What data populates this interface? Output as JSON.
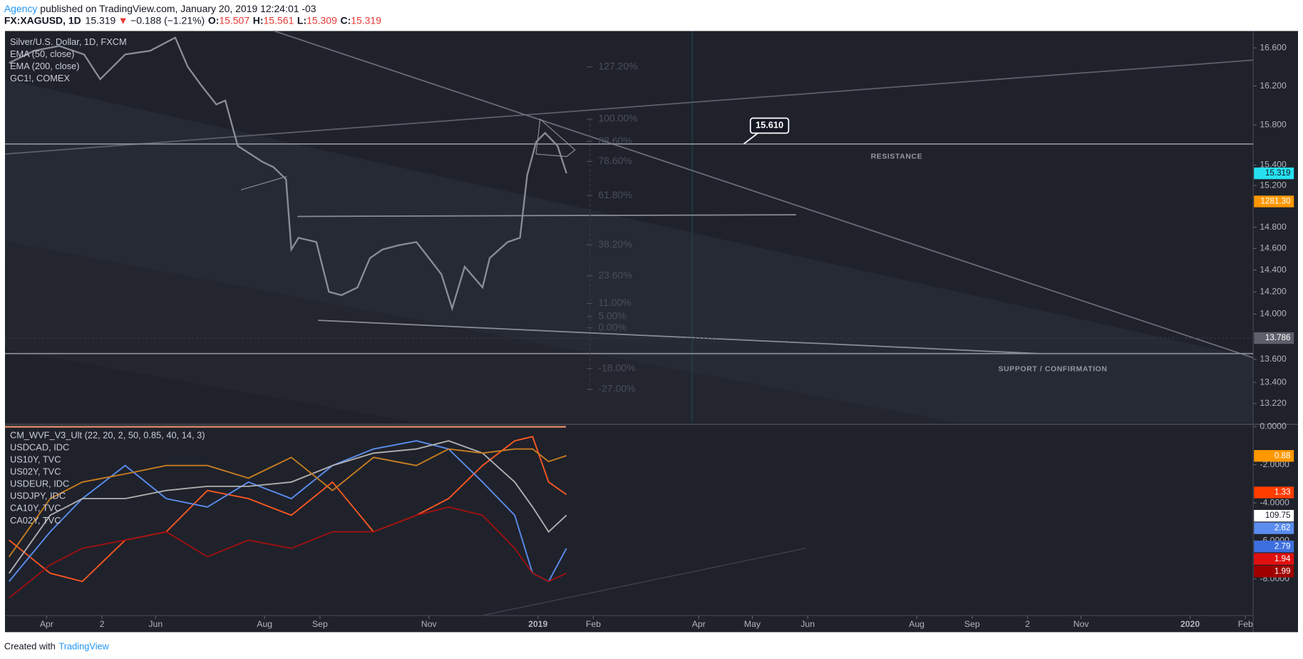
{
  "chart_data": {
    "type": "line",
    "header": {
      "author": "Agency",
      "published": " published on TradingView.com, January 20, 2019 12:24:01 -03",
      "symbol": "FX:XAGUSD, 1D",
      "last": "15.319",
      "arrow": "▼",
      "change": "−0.188 (−1.21%)",
      "ohlc": [
        {
          "key": "O:",
          "value": "15.507"
        },
        {
          "key": "H:",
          "value": "15.561"
        },
        {
          "key": "L:",
          "value": "15.309"
        },
        {
          "key": "C:",
          "value": "15.319"
        }
      ]
    },
    "legend": [
      "Silver/U.S. Dollar, 1D, FXCM",
      "EMA (50, close)",
      "EMA (200, close)",
      "GC1!, COMEX"
    ],
    "lower_legend": [
      "CM_WVF_V3_Ult (22, 20, 2, 50, 0.85, 40, 14, 3)",
      "USDCAD, IDC",
      "US10Y, TVC",
      "US02Y, TVC",
      "USDEUR, IDC",
      "USDJPY, IDC",
      "CA10Y, TVC",
      "CA02Y, TVC"
    ],
    "log_scale": true,
    "xlim": [
      66.7,
      765.3
    ],
    "xticks": [
      {
        "value": 90,
        "label": "Apr"
      },
      {
        "value": 121,
        "label": "2"
      },
      {
        "value": 151,
        "label": "Jun"
      },
      {
        "value": 212,
        "label": "Aug"
      },
      {
        "value": 243,
        "label": "Sep"
      },
      {
        "value": 304,
        "label": "Nov"
      },
      {
        "value": 365,
        "label": "2019"
      },
      {
        "value": 396,
        "label": "Feb"
      },
      {
        "value": 455,
        "label": "Apr"
      },
      {
        "value": 485,
        "label": "May"
      },
      {
        "value": 516,
        "label": "Jun"
      },
      {
        "value": 577,
        "label": "Aug"
      },
      {
        "value": 608,
        "label": "Sep"
      },
      {
        "value": 639,
        "label": "2"
      },
      {
        "value": 669,
        "label": "Nov"
      },
      {
        "value": 730,
        "label": "2020"
      },
      {
        "value": 761,
        "label": "Feb"
      }
    ],
    "ylim": [
      13.06,
      16.78
    ],
    "yticks": [
      {
        "value": 16.6,
        "label": "16.600"
      },
      {
        "value": 16.2,
        "label": "16.200"
      },
      {
        "value": 15.8,
        "label": "15.800"
      },
      {
        "value": 15.4,
        "label": "15.400"
      },
      {
        "value": 15.2,
        "label": "15.200"
      },
      {
        "value": 14.8,
        "label": "14.800"
      },
      {
        "value": 14.6,
        "label": "14.600"
      },
      {
        "value": 14.4,
        "label": "14.400"
      },
      {
        "value": 14.2,
        "label": "14.200"
      },
      {
        "value": 14,
        "label": "14.000"
      },
      {
        "value": 13.6,
        "label": "13.600"
      },
      {
        "value": 13.4,
        "label": "13.400"
      },
      {
        "value": 13.22,
        "label": "13.220"
      }
    ],
    "series": [
      {
        "color": "#8a8d96",
        "x": [
          69,
          83,
          97,
          111,
          120,
          134,
          148,
          162,
          169,
          176,
          185,
          190,
          197,
          204,
          211,
          217,
          224,
          227,
          231,
          241,
          248,
          255,
          264,
          271,
          278,
          287,
          297,
          304,
          311,
          317,
          324,
          334,
          338,
          348,
          355,
          359,
          364,
          369,
          376,
          381
        ],
        "values": [
          16.44,
          16.57,
          16.62,
          16.53,
          16.27,
          16.53,
          16.57,
          16.71,
          16.4,
          16.22,
          16.01,
          16.05,
          15.59,
          15.51,
          15.43,
          15.38,
          15.26,
          14.59,
          14.7,
          14.66,
          14.2,
          14.17,
          14.24,
          14.51,
          14.59,
          14.63,
          14.66,
          14.51,
          14.36,
          14.05,
          14.43,
          14.24,
          14.51,
          14.66,
          14.7,
          15.3,
          15.63,
          15.72,
          15.59,
          15.32
        ]
      }
    ],
    "price_tags": [
      {
        "value": 15.319,
        "label": "15.319",
        "color": "#26e0f0"
      },
      {
        "value": 13.786,
        "label": "13.786",
        "color": "#5d606b"
      }
    ],
    "other_tags": [
      {
        "label": "1281.30",
        "color": "#ff9800"
      }
    ],
    "fib": {
      "low": 13.877,
      "high": 15.86,
      "levels": [
        {
          "value": 127.2,
          "label": "127.20%"
        },
        {
          "value": 100,
          "label": "100.00%"
        },
        {
          "value": 88.6,
          "label": "88.60%"
        },
        {
          "value": 78.6,
          "label": "78.60%"
        },
        {
          "value": 61.8,
          "label": "61.80%"
        },
        {
          "value": 38.2,
          "label": "38.20%"
        },
        {
          "value": 23.6,
          "label": "23.60%"
        },
        {
          "value": 11,
          "label": "11.00%"
        },
        {
          "value": 5,
          "label": "5.00%"
        },
        {
          "value": 0,
          "label": "0.00%"
        },
        {
          "value": -18,
          "label": "-18.00%"
        },
        {
          "value": -27,
          "label": "-27.00%"
        }
      ]
    },
    "annotations": {
      "callout": {
        "value": 15.61,
        "label": "15.610"
      },
      "resistance": "RESISTANCE",
      "support": "SUPPORT / CONFIRMATION"
    },
    "lower": {
      "ylim": [
        -9.92,
        0.04
      ],
      "yticks": [
        {
          "value": 0,
          "label": "0.0000"
        },
        {
          "value": -2,
          "label": "-2.0000"
        },
        {
          "value": -4,
          "label": "-4.0000"
        },
        {
          "value": -6,
          "label": "-6.0000"
        },
        {
          "value": -8,
          "label": "-8.0000"
        }
      ],
      "x": [
        69,
        92,
        110,
        134,
        157,
        180,
        203,
        227,
        250,
        273,
        297,
        315,
        334,
        352,
        362,
        371,
        381
      ],
      "series": [
        {
          "color": "#ff5722",
          "values": [
            -5.96,
            -7.7,
            -8.13,
            -5.96,
            -5.52,
            -3.35,
            -3.78,
            -4.65,
            -2.91,
            -5.52,
            -4.65,
            -3.78,
            -2.04,
            -0.74,
            -0.52,
            -2.91,
            -3.57
          ]
        },
        {
          "color": "#5b8def",
          "values": [
            -8.13,
            -5.52,
            -3.78,
            -2.04,
            -3.78,
            -4.22,
            -2.91,
            -3.78,
            -2.04,
            -1.17,
            -0.74,
            -1.17,
            -2.91,
            -4.65,
            -7.7,
            -8.13,
            -6.39
          ]
        },
        {
          "color": "#b0b0b0",
          "values": [
            -7.7,
            -4.65,
            -3.78,
            -3.78,
            -3.35,
            -3.13,
            -3.13,
            -2.91,
            -2.04,
            -1.39,
            -1.17,
            -0.74,
            -1.39,
            -2.91,
            -4.22,
            -5.52,
            -4.65
          ]
        },
        {
          "color": "#c77d20",
          "values": [
            -6.83,
            -3.78,
            -2.91,
            -2.48,
            -2.04,
            -2.04,
            -2.7,
            -1.61,
            -3.35,
            -1.61,
            -2.04,
            -1.17,
            -1.39,
            -1.17,
            -1.17,
            -1.83,
            -1.52
          ]
        },
        {
          "color": "#a01010",
          "values": [
            -9.0,
            -7.26,
            -6.39,
            -5.96,
            -5.52,
            -6.83,
            -5.96,
            -6.39,
            -5.52,
            -5.52,
            -4.65,
            -4.22,
            -4.65,
            -6.39,
            -7.7,
            -8.13,
            -7.7
          ]
        }
      ],
      "tags": [
        {
          "label": "0.88",
          "color": "#ff9800"
        },
        {
          "label": "1.33",
          "color": "#ff3d00"
        },
        {
          "label": "109.75",
          "color": "#ffffff"
        },
        {
          "label": "2.62",
          "color": "#5b8def"
        },
        {
          "label": "2.79",
          "color": "#3d6fe0"
        },
        {
          "label": "1.94",
          "color": "#e01010"
        },
        {
          "label": "1.99",
          "color": "#a00000"
        }
      ]
    },
    "footer": {
      "created": "Created with",
      "brand": "TradingView"
    }
  }
}
